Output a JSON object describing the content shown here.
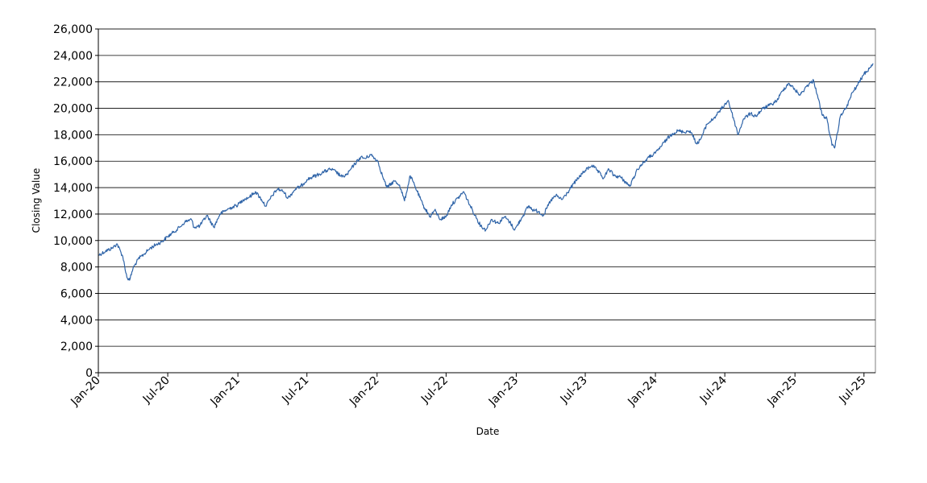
{
  "chart_data": {
    "type": "line",
    "xlabel": "Date",
    "ylabel": "Closing Value",
    "ylim": [
      0,
      26000
    ],
    "xlim": [
      "2020-01-01",
      "2025-07-31"
    ],
    "grid": "horizontal",
    "y_ticks": [
      0,
      2000,
      4000,
      6000,
      8000,
      10000,
      12000,
      14000,
      16000,
      18000,
      20000,
      22000,
      24000,
      26000
    ],
    "y_tick_labels": [
      "0",
      "2,000",
      "4,000",
      "6,000",
      "8,000",
      "10,000",
      "12,000",
      "14,000",
      "16,000",
      "18,000",
      "20,000",
      "22,000",
      "24,000",
      "26,000"
    ],
    "x_ticks": [
      "2020-01-01",
      "2020-07-01",
      "2021-01-01",
      "2021-07-01",
      "2022-01-01",
      "2022-07-01",
      "2023-01-01",
      "2023-07-01",
      "2024-01-01",
      "2024-07-01",
      "2025-01-01",
      "2025-07-01"
    ],
    "x_tick_labels": [
      "Jan-20",
      "Jul-20",
      "Jan-21",
      "Jul-21",
      "Jan-22",
      "Jul-22",
      "Jan-23",
      "Jul-23",
      "Jan-24",
      "Jul-24",
      "Jan-25",
      "Jul-25"
    ],
    "series": [
      {
        "color": "#2f64a8",
        "x": [
          "2020-01-02",
          "2020-01-20",
          "2020-02-05",
          "2020-02-19",
          "2020-03-05",
          "2020-03-16",
          "2020-03-23",
          "2020-04-01",
          "2020-04-15",
          "2020-05-01",
          "2020-05-15",
          "2020-06-01",
          "2020-06-15",
          "2020-07-01",
          "2020-07-15",
          "2020-08-01",
          "2020-08-15",
          "2020-09-01",
          "2020-09-08",
          "2020-09-23",
          "2020-10-12",
          "2020-10-30",
          "2020-11-15",
          "2020-12-01",
          "2020-12-15",
          "2021-01-01",
          "2021-01-15",
          "2021-02-01",
          "2021-02-16",
          "2021-03-04",
          "2021-03-15",
          "2021-04-01",
          "2021-04-15",
          "2021-05-01",
          "2021-05-12",
          "2021-06-01",
          "2021-06-15",
          "2021-07-01",
          "2021-07-15",
          "2021-08-01",
          "2021-08-15",
          "2021-09-01",
          "2021-09-15",
          "2021-10-01",
          "2021-10-15",
          "2021-11-01",
          "2021-11-19",
          "2021-12-01",
          "2021-12-15",
          "2022-01-03",
          "2022-01-15",
          "2022-01-27",
          "2022-02-15",
          "2022-03-01",
          "2022-03-14",
          "2022-03-29",
          "2022-04-15",
          "2022-05-01",
          "2022-05-20",
          "2022-06-01",
          "2022-06-16",
          "2022-07-01",
          "2022-07-15",
          "2022-08-01",
          "2022-08-16",
          "2022-09-01",
          "2022-09-15",
          "2022-09-30",
          "2022-10-13",
          "2022-10-28",
          "2022-11-15",
          "2022-12-01",
          "2022-12-15",
          "2022-12-28",
          "2023-01-15",
          "2023-02-02",
          "2023-02-15",
          "2023-03-01",
          "2023-03-13",
          "2023-04-01",
          "2023-04-15",
          "2023-05-01",
          "2023-05-15",
          "2023-06-01",
          "2023-06-15",
          "2023-07-01",
          "2023-07-19",
          "2023-08-01",
          "2023-08-18",
          "2023-09-01",
          "2023-09-15",
          "2023-10-01",
          "2023-10-26",
          "2023-11-15",
          "2023-12-01",
          "2023-12-15",
          "2024-01-01",
          "2024-01-15",
          "2024-02-01",
          "2024-02-15",
          "2024-03-01",
          "2024-03-15",
          "2024-04-01",
          "2024-04-19",
          "2024-05-01",
          "2024-05-15",
          "2024-06-01",
          "2024-06-15",
          "2024-07-10",
          "2024-07-25",
          "2024-08-05",
          "2024-08-19",
          "2024-09-06",
          "2024-09-20",
          "2024-10-10",
          "2024-11-01",
          "2024-11-15",
          "2024-12-01",
          "2024-12-16",
          "2025-01-01",
          "2025-01-15",
          "2025-02-01",
          "2025-02-19",
          "2025-03-01",
          "2025-03-13",
          "2025-03-26",
          "2025-04-08",
          "2025-04-15",
          "2025-05-01",
          "2025-05-15",
          "2025-06-01",
          "2025-06-15",
          "2025-07-01",
          "2025-07-15",
          "2025-07-25"
        ],
        "y": [
          8900,
          9200,
          9400,
          9750,
          8800,
          7200,
          7000,
          7900,
          8600,
          9000,
          9400,
          9700,
          9900,
          10300,
          10600,
          11000,
          11400,
          11600,
          11000,
          11100,
          11900,
          11000,
          12000,
          12300,
          12500,
          12700,
          13100,
          13300,
          13700,
          13100,
          12600,
          13400,
          13900,
          13700,
          13200,
          13900,
          14100,
          14600,
          14800,
          15000,
          15200,
          15400,
          15200,
          14800,
          15000,
          15700,
          16300,
          16200,
          16500,
          16000,
          14900,
          14000,
          14500,
          14200,
          13000,
          14900,
          13800,
          12700,
          11800,
          12300,
          11600,
          11800,
          12700,
          13200,
          13700,
          12700,
          11900,
          11100,
          10800,
          11600,
          11300,
          11800,
          11400,
          10800,
          11700,
          12600,
          12300,
          12200,
          11900,
          13000,
          13400,
          13100,
          13600,
          14300,
          14800,
          15300,
          15700,
          15300,
          14700,
          15400,
          14900,
          14800,
          14100,
          15400,
          15900,
          16300,
          16600,
          17100,
          17700,
          18100,
          18300,
          18200,
          18300,
          17300,
          17800,
          18800,
          19200,
          19700,
          20600,
          19100,
          18000,
          19200,
          19600,
          19400,
          20000,
          20300,
          20600,
          21400,
          21900,
          21400,
          21000,
          21700,
          22100,
          21000,
          19500,
          19200,
          17200,
          17000,
          19500,
          20000,
          21200,
          21800,
          22600,
          23000,
          23400
        ]
      }
    ]
  }
}
